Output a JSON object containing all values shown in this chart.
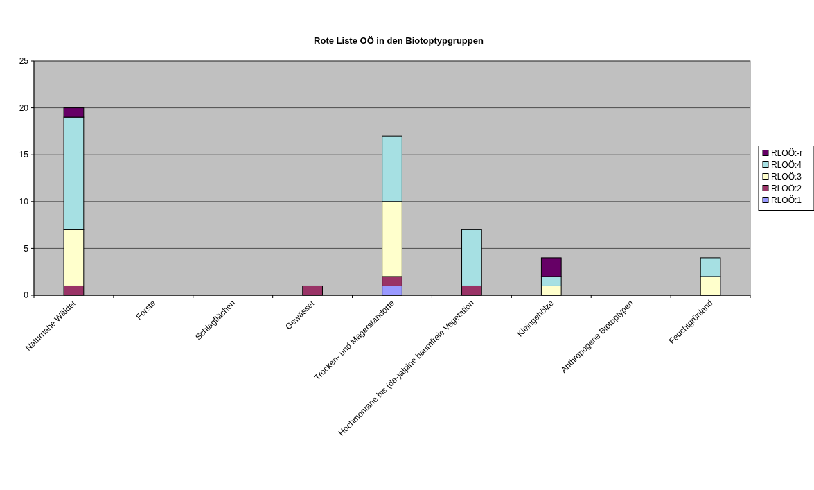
{
  "chart_data": {
    "type": "bar",
    "title": "Rote Liste OÖ in den Biotoptypgruppen",
    "stacked": true,
    "categories": [
      "Naturnahe Wälder",
      "Forste",
      "Schlagflächen",
      "Gewässer",
      "Trocken- und Magerstandorte",
      "Hochmontane bis (de-)alpine baumfreie Vegetation",
      "Kleingehölze",
      "Anthropogene Biotoptypen",
      "Feuchtgrünland"
    ],
    "series": [
      {
        "name": "RLOÖ:1",
        "color": "#9999ff",
        "values": [
          0,
          0,
          0,
          0,
          1,
          0,
          0,
          0,
          0
        ]
      },
      {
        "name": "RLOÖ:2",
        "color": "#993366",
        "values": [
          1,
          0,
          0,
          1,
          1,
          1,
          0,
          0,
          0
        ]
      },
      {
        "name": "RLOÖ:3",
        "color": "#ffffcc",
        "values": [
          6,
          0,
          0,
          0,
          8,
          0,
          1,
          0,
          2
        ]
      },
      {
        "name": "RLOÖ:4",
        "color": "#a6e0e3",
        "values": [
          12,
          0,
          0,
          0,
          7,
          6,
          1,
          0,
          2
        ]
      },
      {
        "name": "RLOÖ:-r",
        "color": "#660066",
        "values": [
          1,
          0,
          0,
          0,
          0,
          0,
          2,
          0,
          0
        ]
      }
    ],
    "ylim": [
      0,
      25
    ],
    "yticks": [
      0,
      5,
      10,
      15,
      20,
      25
    ],
    "grid": "y",
    "legend": "right"
  }
}
